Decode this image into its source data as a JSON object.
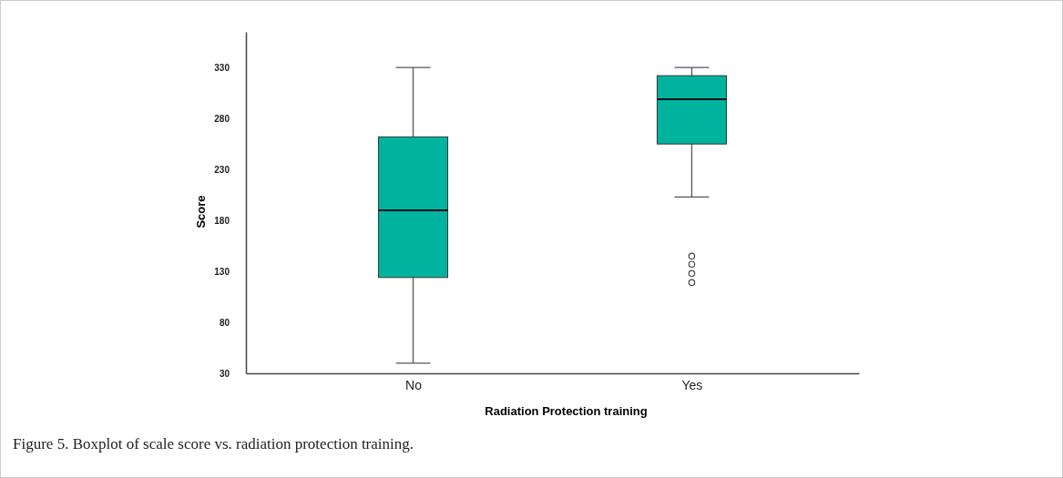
{
  "chart_data": {
    "type": "box",
    "xlabel": "Radiation Protection training",
    "ylabel": "Score",
    "categories": [
      "No",
      "Yes"
    ],
    "color": "#00b39f",
    "boxes": [
      {
        "low": 40,
        "q1": 124,
        "median": 190,
        "q3": 262,
        "high": 330
      },
      {
        "low": 203,
        "q1": 255,
        "median": 299,
        "q3": 322,
        "high": 330,
        "outliers": [
          145,
          137,
          128,
          119
        ]
      }
    ],
    "ylim": [
      30,
      365
    ],
    "yticks": [
      30,
      80,
      130,
      180,
      230,
      280,
      330
    ],
    "grid": false,
    "annotations": [
      "Figure 5. Boxplot of scale score vs. radiation protection training."
    ]
  }
}
